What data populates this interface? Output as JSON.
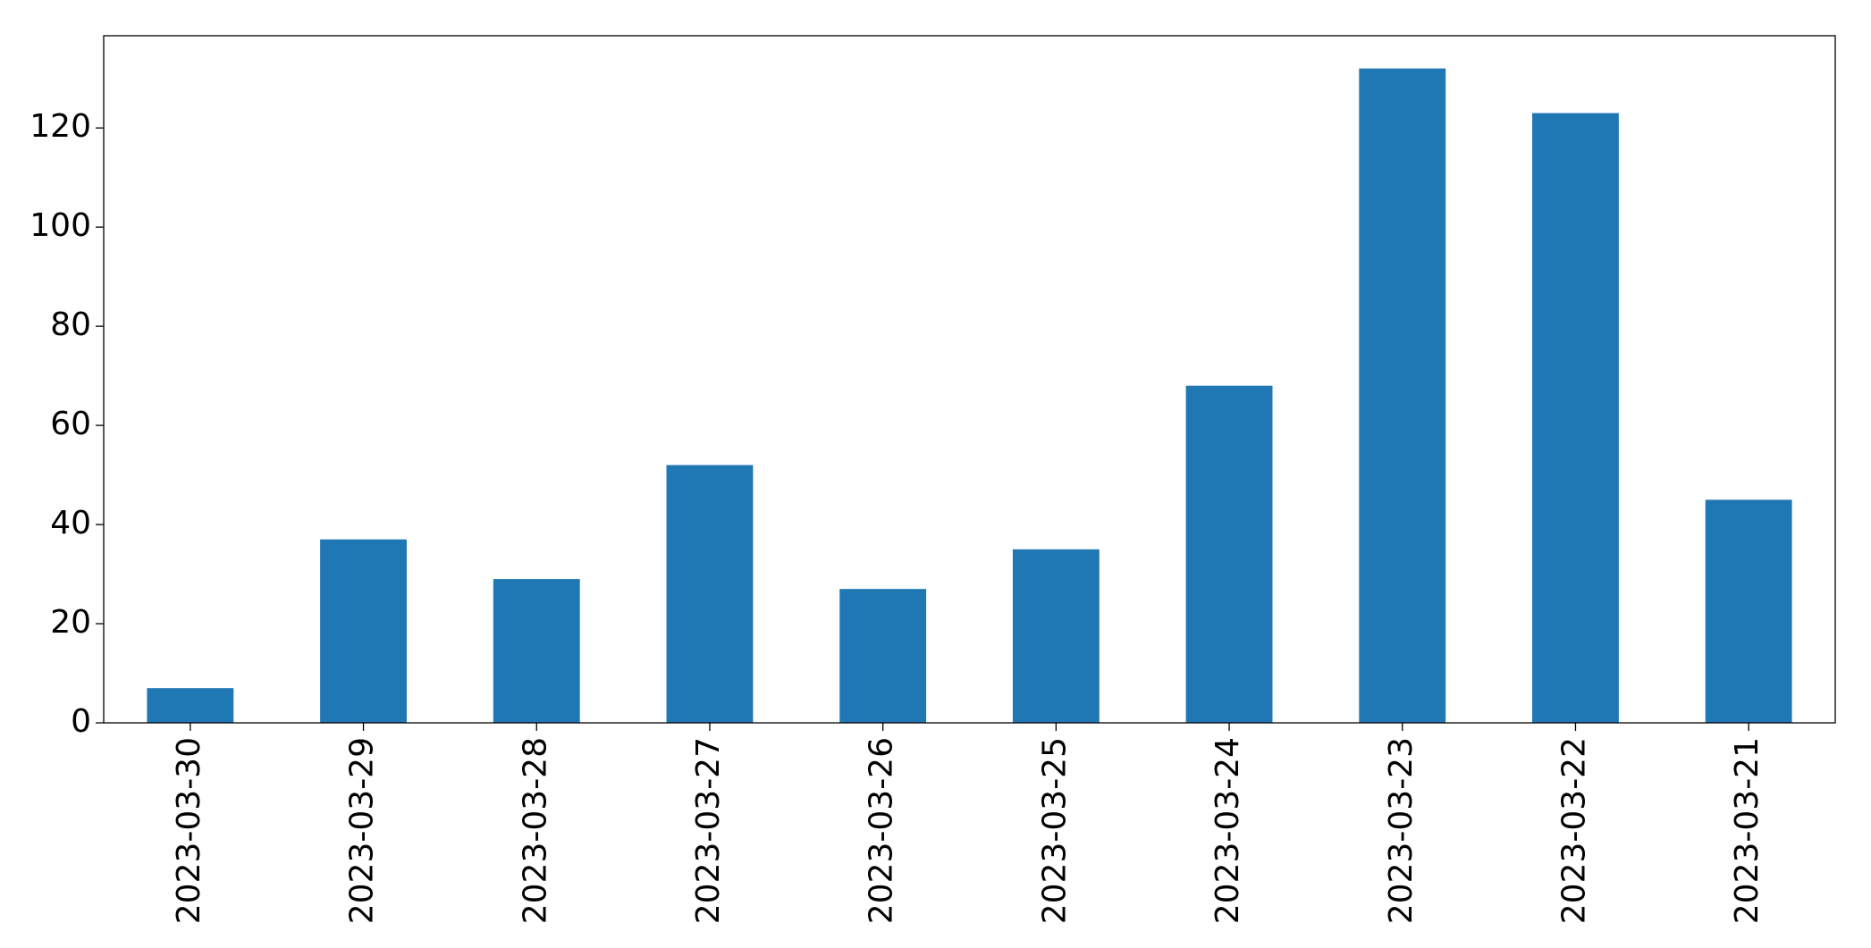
{
  "chart_data": {
    "type": "bar",
    "categories": [
      "2023-03-30",
      "2023-03-29",
      "2023-03-28",
      "2023-03-27",
      "2023-03-26",
      "2023-03-25",
      "2023-03-24",
      "2023-03-23",
      "2023-03-22",
      "2023-03-21"
    ],
    "values": [
      7,
      37,
      29,
      52,
      27,
      35,
      68,
      132,
      123,
      45
    ],
    "color": "#1f77b4",
    "ylim": [
      0,
      138.6
    ],
    "yticks": [
      0,
      20,
      40,
      60,
      80,
      100,
      120
    ],
    "grid": false
  }
}
